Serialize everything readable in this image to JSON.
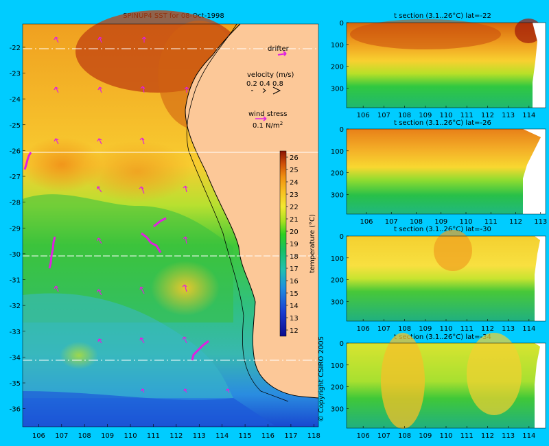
{
  "chart_data": [
    {
      "type": "heatmap",
      "title": "SPINUP4 SST for 08-Oct-1998",
      "x_ticks": [
        106,
        107,
        108,
        109,
        110,
        111,
        112,
        113,
        114,
        115,
        116,
        117,
        118
      ],
      "y_ticks": [
        -22,
        -23,
        -24,
        -25,
        -26,
        -27,
        -28,
        -29,
        -30,
        -31,
        -32,
        -33,
        -34,
        -35,
        -36
      ],
      "xlim": [
        105.3,
        118.2
      ],
      "ylim": [
        -36.7,
        -21.1
      ],
      "section_lines_lat": [
        -22,
        -26,
        -30,
        -34
      ],
      "colorbar": {
        "label": "temperature (°C)",
        "ticks": [
          12,
          13,
          14,
          15,
          16,
          17,
          18,
          19,
          20,
          21,
          22,
          23,
          24,
          25,
          26
        ],
        "range": [
          11.5,
          26.5
        ]
      },
      "annotations": {
        "drifter": "drifter",
        "velocity_label": "velocity (m/s)",
        "velocity_scale": [
          "0.2",
          "0.4",
          "0.8"
        ],
        "wind_label": "wind stress",
        "wind_scale": "0.1 N/m",
        "wind_scale_exp": "2"
      },
      "copyright": "© Copyright CSIRO 2005"
    },
    {
      "type": "heatmap",
      "title": "t section (3.1..26°C) lat=-22",
      "x_ticks": [
        106,
        107,
        108,
        109,
        110,
        111,
        112,
        113,
        114
      ],
      "xlim": [
        105.2,
        114.8
      ],
      "y_ticks": [
        0,
        100,
        200,
        300
      ],
      "ylim": [
        0,
        390
      ]
    },
    {
      "type": "heatmap",
      "title": "t section (3.1..26°C) lat=-26",
      "x_ticks": [
        106,
        107,
        108,
        109,
        110,
        111,
        112,
        113
      ],
      "xlim": [
        105.2,
        113.2
      ],
      "y_ticks": [
        0,
        100,
        200,
        300
      ],
      "ylim": [
        0,
        390
      ]
    },
    {
      "type": "heatmap",
      "title": "t section (3.1..26°C) lat=-30",
      "x_ticks": [
        106,
        107,
        108,
        109,
        110,
        111,
        112,
        113,
        114
      ],
      "xlim": [
        105.2,
        114.8
      ],
      "y_ticks": [
        0,
        100,
        200,
        300
      ],
      "ylim": [
        0,
        390
      ]
    },
    {
      "type": "heatmap",
      "title": "t section (3.1..26°C) lat=-34",
      "x_ticks": [
        106,
        107,
        108,
        109,
        110,
        111,
        112,
        113,
        114
      ],
      "xlim": [
        105.2,
        114.8
      ],
      "y_ticks": [
        0,
        100,
        200,
        300
      ],
      "ylim": [
        0,
        390
      ]
    }
  ]
}
